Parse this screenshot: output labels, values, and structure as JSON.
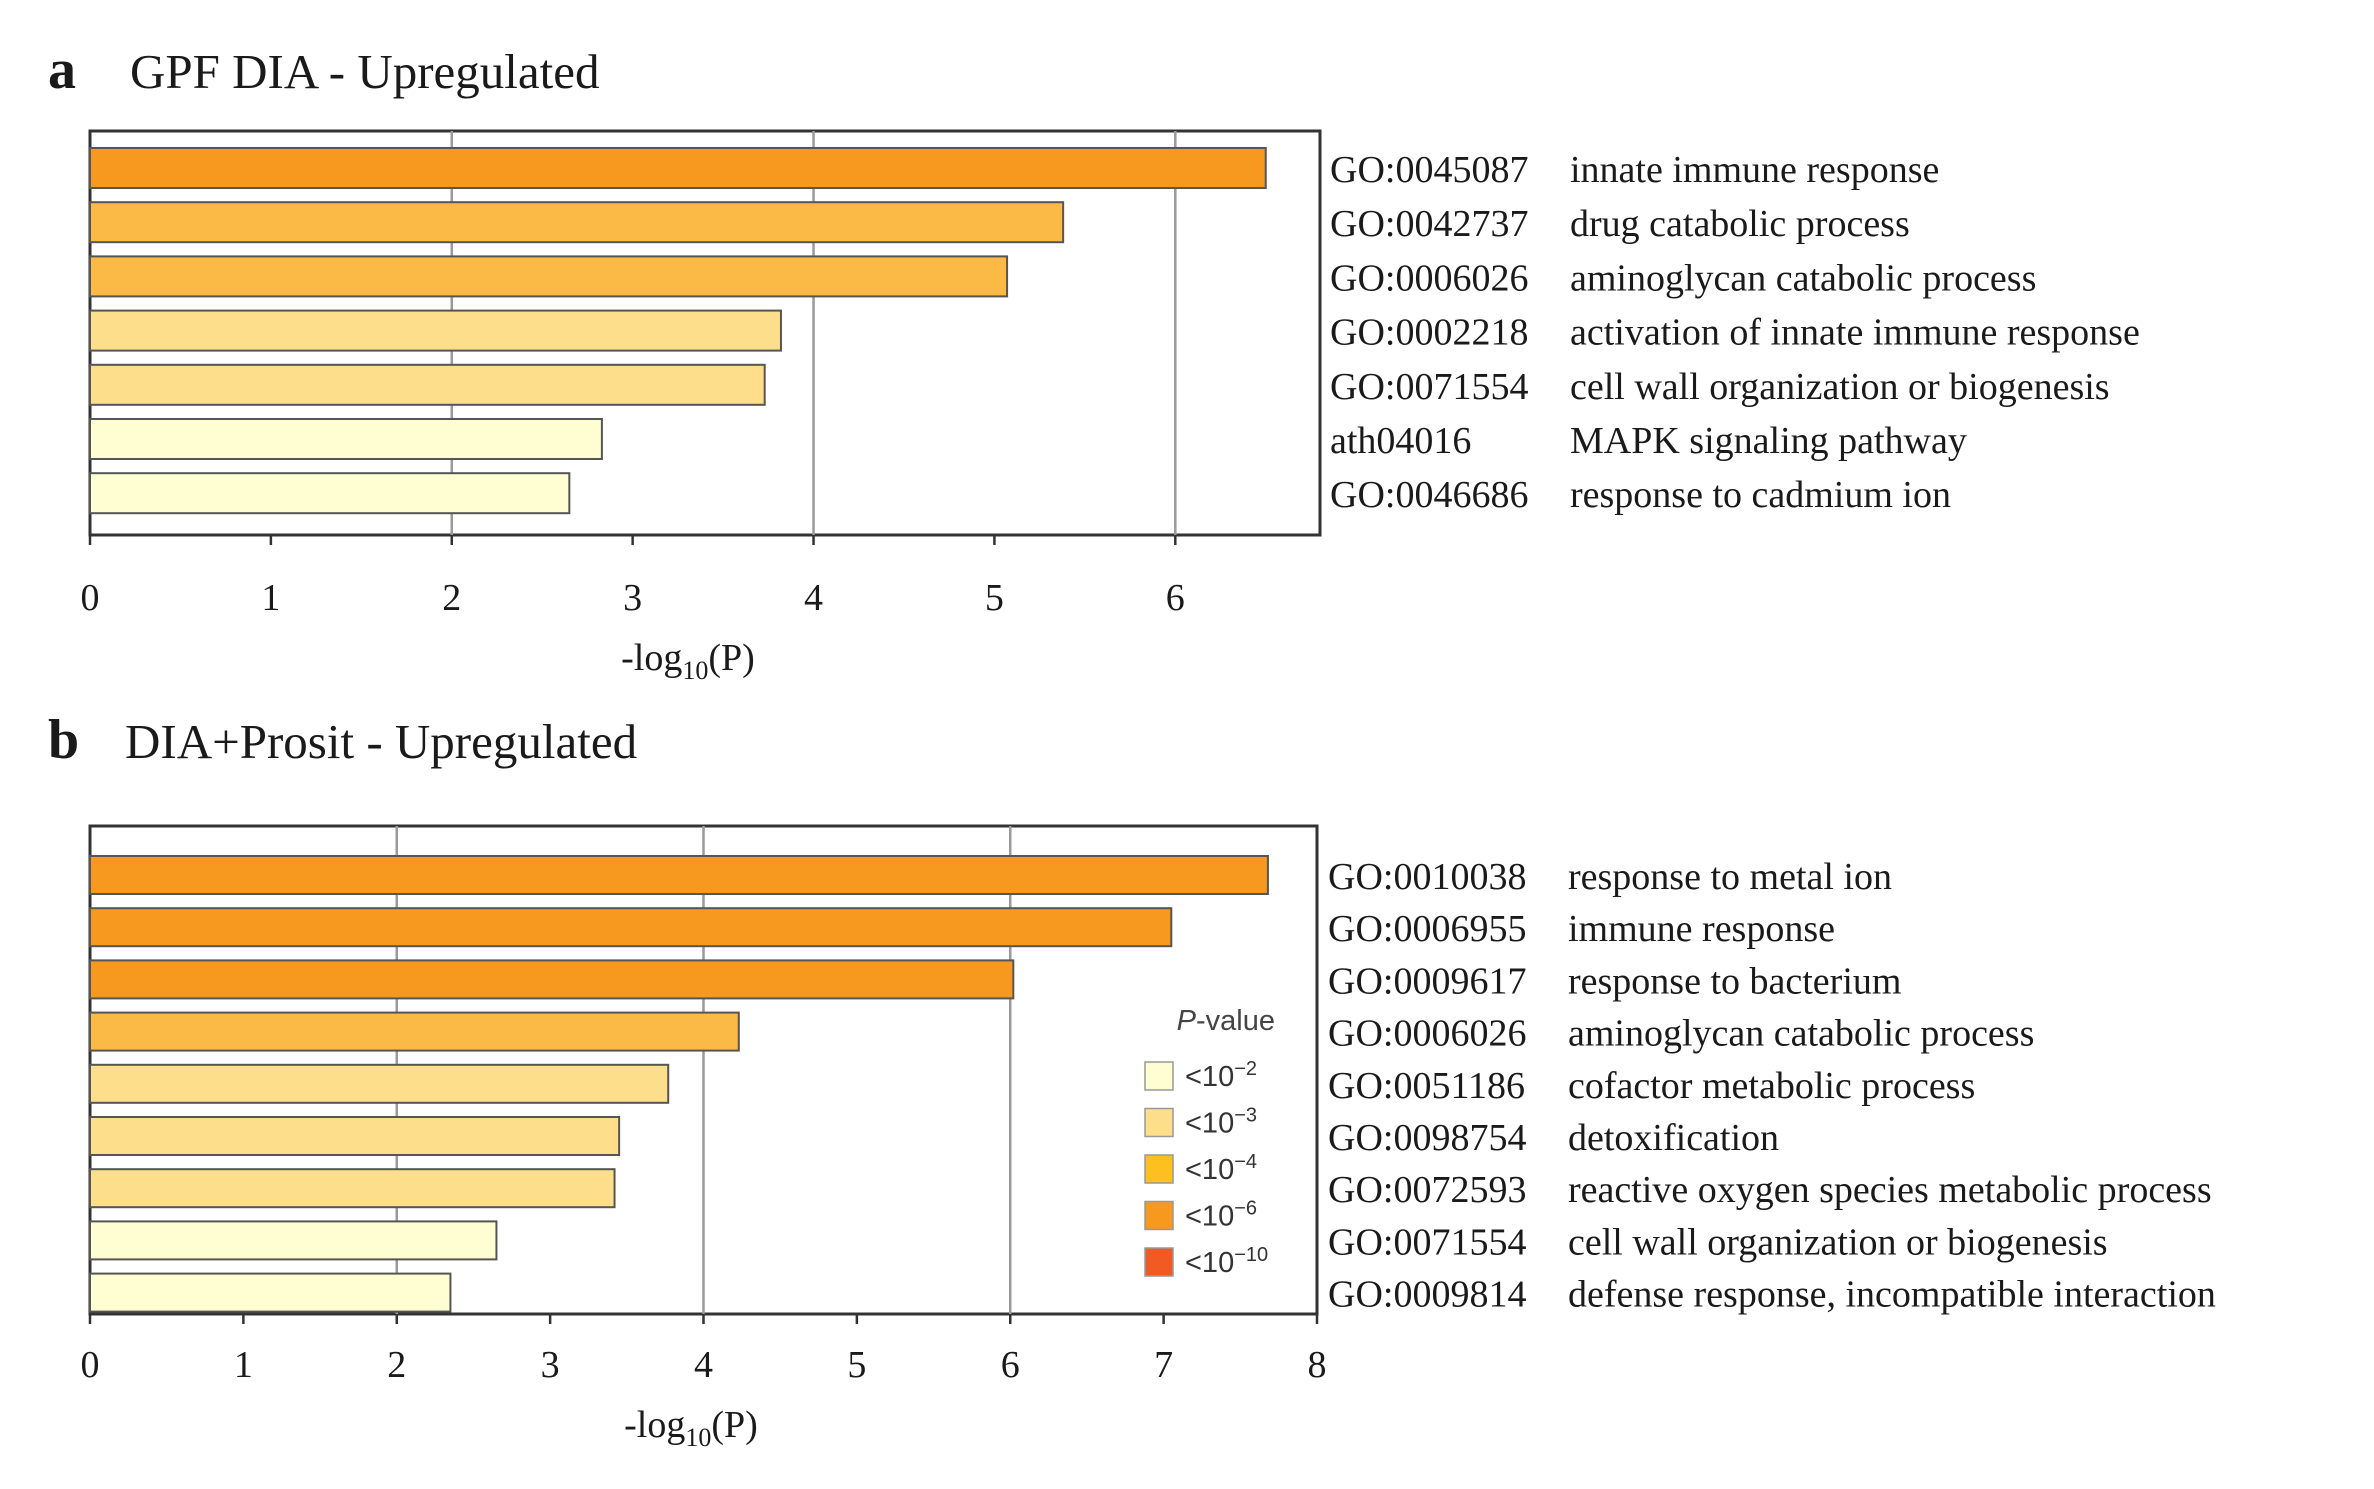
{
  "chart_data": [
    {
      "panel": "a",
      "type": "bar",
      "orientation": "horizontal",
      "title": "GPF DIA - Upregulated",
      "xlabel": "-log10(P)",
      "xlabel_parts": {
        "main": "-log",
        "sub": "10",
        "tail": "(P)"
      },
      "xlim": [
        0,
        6.8
      ],
      "xticks": [
        0,
        1,
        2,
        3,
        4,
        5,
        6
      ],
      "gridlines_at": [
        2,
        4,
        6
      ],
      "categories": [
        {
          "id": "GO:0045087",
          "term": "innate immune response",
          "value": 6.5,
          "color": "#F7991E"
        },
        {
          "id": "GO:0042737",
          "term": "drug catabolic process",
          "value": 5.38,
          "color": "#FBBA45"
        },
        {
          "id": "GO:0006026",
          "term": "aminoglycan catabolic process",
          "value": 5.07,
          "color": "#FBBA45"
        },
        {
          "id": "GO:0002218",
          "term": "activation of innate immune response",
          "value": 3.82,
          "color": "#FDDE8A"
        },
        {
          "id": "GO:0071554",
          "term": "cell wall organization or biogenesis",
          "value": 3.73,
          "color": "#FDDE8A"
        },
        {
          "id": "ath04016",
          "term": "MAPK signaling pathway",
          "value": 2.83,
          "color": "#FFFED3"
        },
        {
          "id": "GO:0046686",
          "term": "response to cadmium ion",
          "value": 2.65,
          "color": "#FFFED3"
        }
      ]
    },
    {
      "panel": "b",
      "type": "bar",
      "orientation": "horizontal",
      "title": "DIA+Prosit - Upregulated",
      "xlabel": "-log10(P)",
      "xlabel_parts": {
        "main": "-log",
        "sub": "10",
        "tail": "(P)"
      },
      "xlim": [
        0,
        8
      ],
      "xticks": [
        0,
        1,
        2,
        3,
        4,
        5,
        6,
        7,
        8
      ],
      "gridlines_at": [
        2,
        4,
        6
      ],
      "categories": [
        {
          "id": "GO:0010038",
          "term": "response to metal ion",
          "value": 7.68,
          "color": "#F7991E"
        },
        {
          "id": "GO:0006955",
          "term": "immune response",
          "value": 7.05,
          "color": "#F7991E"
        },
        {
          "id": "GO:0009617",
          "term": "response to bacterium",
          "value": 6.02,
          "color": "#F7991E"
        },
        {
          "id": "GO:0006026",
          "term": "aminoglycan catabolic process",
          "value": 4.23,
          "color": "#FBBA45"
        },
        {
          "id": "GO:0051186",
          "term": "cofactor metabolic process",
          "value": 3.77,
          "color": "#FDDE8A"
        },
        {
          "id": "GO:0098754",
          "term": "detoxification",
          "value": 3.45,
          "color": "#FDDE8A"
        },
        {
          "id": "GO:0072593",
          "term": "reactive oxygen species metabolic process",
          "value": 3.42,
          "color": "#FDDE8A"
        },
        {
          "id": "GO:0071554",
          "term": "cell wall organization or biogenesis",
          "value": 2.65,
          "color": "#FFFED3"
        },
        {
          "id": "GO:0009814",
          "term": "defense response, incompatible interaction",
          "value": 2.35,
          "color": "#FFFED3"
        }
      ],
      "legend": {
        "title_italic": "P",
        "title_rest": "-value",
        "items": [
          {
            "base": "<10",
            "exp": "−2",
            "color": "#FFFED3"
          },
          {
            "base": "<10",
            "exp": "−3",
            "color": "#FDDE8A"
          },
          {
            "base": "<10",
            "exp": "−4",
            "color": "#FDC01F"
          },
          {
            "base": "<10",
            "exp": "−6",
            "color": "#F7991E"
          },
          {
            "base": "<10",
            "exp": "−10",
            "color": "#F15A22"
          }
        ]
      }
    }
  ]
}
